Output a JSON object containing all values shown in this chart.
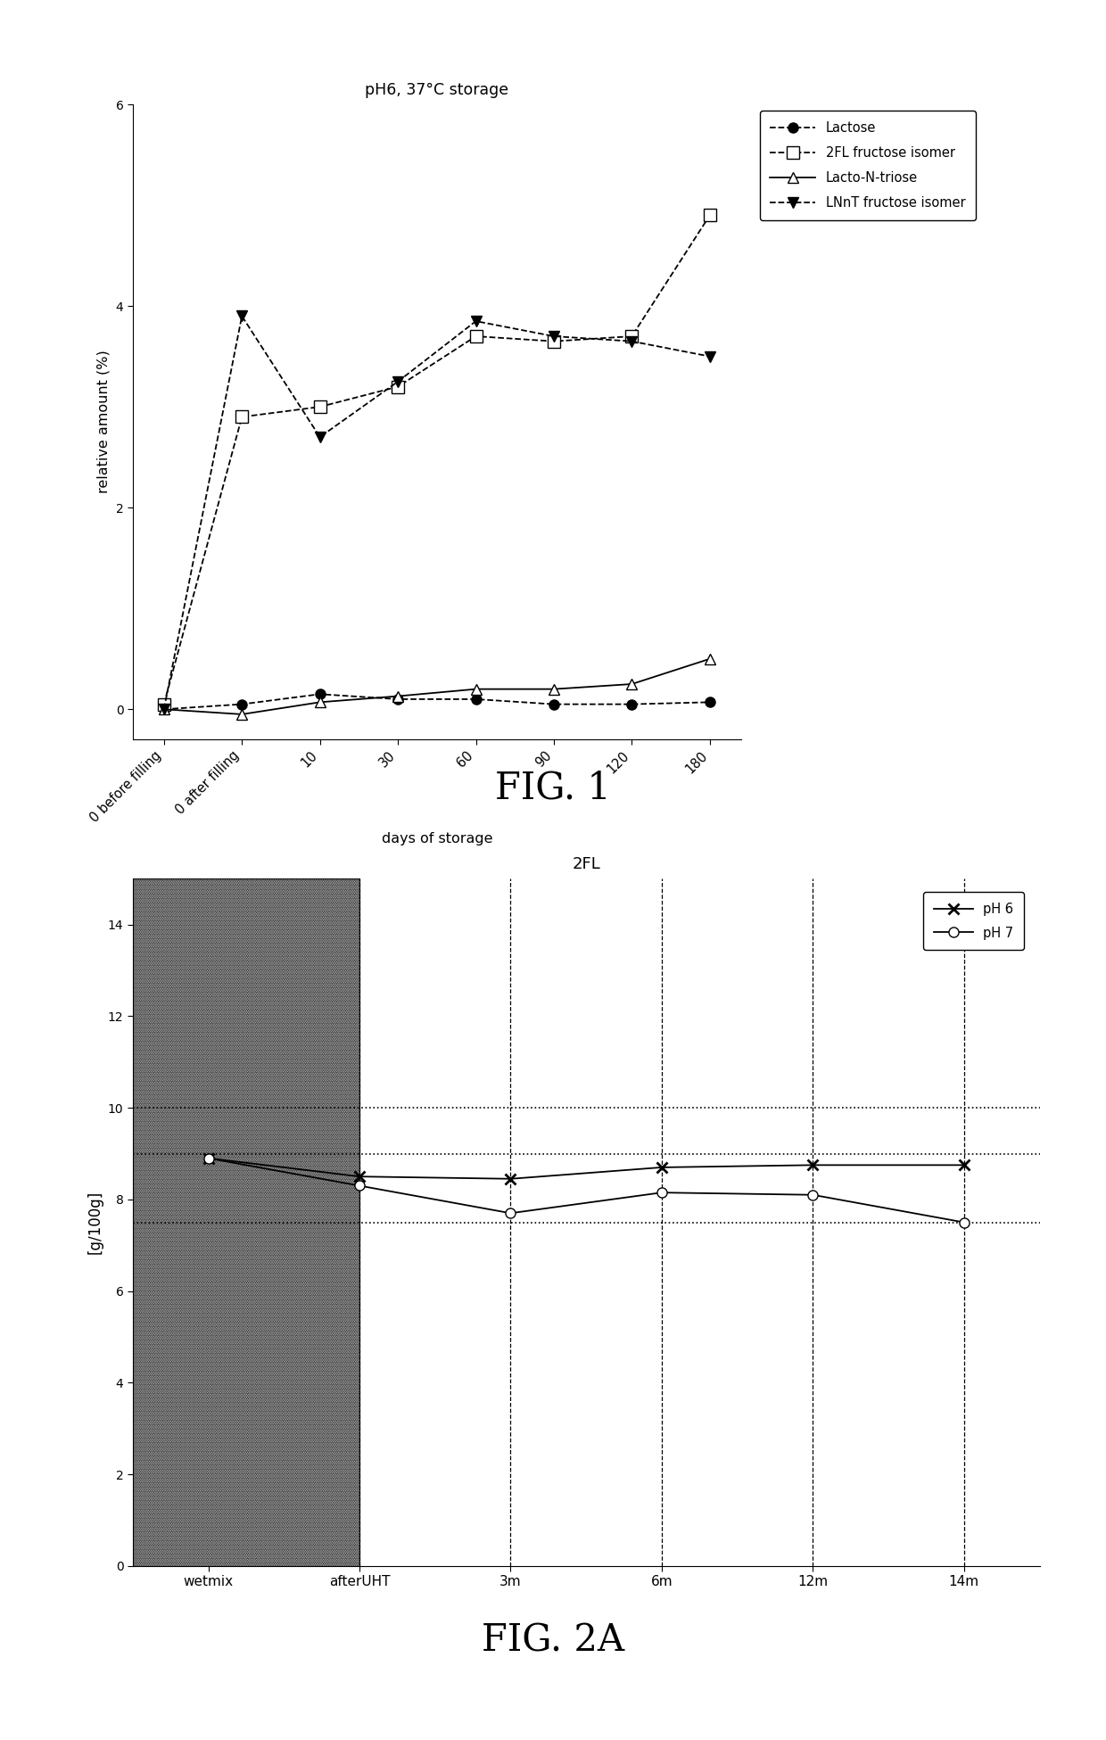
{
  "fig1": {
    "title": "pH6, 37°C storage",
    "xlabel": "days of storage",
    "ylabel": "relative amount (%)",
    "ylim": [
      -0.3,
      6.0
    ],
    "yticks": [
      0,
      2,
      4,
      6
    ],
    "x_positions": [
      0,
      1,
      2,
      3,
      4,
      5,
      6,
      7
    ],
    "x_labels": [
      "0 before filling",
      "0 after filling",
      "10",
      "30",
      "60",
      "90",
      "120",
      "180"
    ],
    "series": {
      "Lactose": {
        "x": [
          0,
          1,
          2,
          3,
          4,
          5,
          6,
          7
        ],
        "y": [
          0.0,
          0.05,
          0.15,
          0.1,
          0.1,
          0.05,
          0.05,
          0.07
        ],
        "marker": "o",
        "markerfacecolor": "black",
        "linestyle": "--",
        "label": "Lactose"
      },
      "2FL_fructose": {
        "x": [
          0,
          1,
          2,
          3,
          4,
          5,
          6,
          7
        ],
        "y": [
          0.05,
          2.9,
          3.0,
          3.2,
          3.7,
          3.65,
          3.7,
          4.9
        ],
        "marker": "s",
        "markerfacecolor": "white",
        "linestyle": "--",
        "label": "2FL fructose isomer"
      },
      "LactoNtriose": {
        "x": [
          0,
          1,
          2,
          3,
          4,
          5,
          6,
          7
        ],
        "y": [
          0.0,
          -0.05,
          0.07,
          0.13,
          0.2,
          0.2,
          0.25,
          0.5
        ],
        "marker": "^",
        "markerfacecolor": "white",
        "linestyle": "-",
        "label": "Lacto-N-triose"
      },
      "LNnT_fructose": {
        "x": [
          0,
          1,
          2,
          3,
          4,
          5,
          6,
          7
        ],
        "y": [
          0.0,
          3.9,
          2.7,
          3.25,
          3.85,
          3.7,
          3.65,
          3.5
        ],
        "marker": "v",
        "markerfacecolor": "black",
        "linestyle": "--",
        "label": "LNnT fructose isomer"
      }
    }
  },
  "fig2": {
    "title": "2FL",
    "xlabel": "",
    "ylabel": "[g/100g]",
    "ylim": [
      0,
      15
    ],
    "yticks": [
      0,
      2,
      4,
      6,
      8,
      10,
      12,
      14
    ],
    "x_positions": [
      0,
      1,
      2,
      3,
      4,
      5
    ],
    "x_labels": [
      "wetmix",
      "afterUHT",
      "3m",
      "6m",
      "12m",
      "14m"
    ],
    "hlines": [
      7.5,
      9.0,
      10.0
    ],
    "ph6": {
      "x": [
        0,
        1,
        2,
        3,
        4,
        5
      ],
      "y": [
        8.9,
        8.5,
        8.45,
        8.7,
        8.75,
        8.75
      ],
      "marker": "x",
      "linestyle": "-",
      "label": "pH 6"
    },
    "ph7": {
      "x": [
        0,
        1,
        2,
        3,
        4,
        5
      ],
      "y": [
        8.9,
        8.3,
        7.7,
        8.15,
        8.1,
        7.5
      ],
      "marker": "o",
      "markerfacecolor": "white",
      "linestyle": "-",
      "label": "pH 7"
    },
    "vlines": [
      1,
      2,
      3,
      4,
      5
    ]
  }
}
